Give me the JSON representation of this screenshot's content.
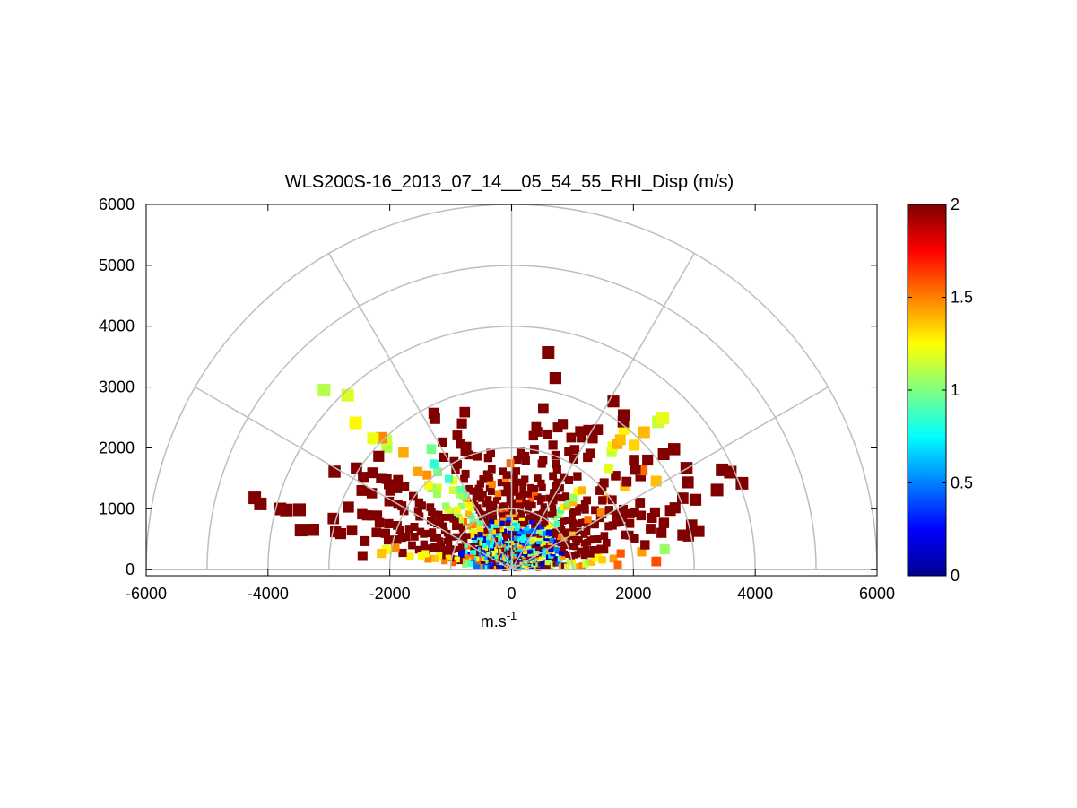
{
  "chart_data": {
    "type": "heatmap",
    "title": "WLS200S-16_2013_07_14__05_54_55_RHI_Disp (m/s)",
    "xlabel": "m.s",
    "xlabel_superscript": "-1",
    "ylabel": "",
    "xlim": [
      -6000,
      6000
    ],
    "ylim": [
      -100,
      6000
    ],
    "x_ticks": [
      -6000,
      -4000,
      -2000,
      0,
      2000,
      4000,
      6000
    ],
    "y_ticks": [
      0,
      1000,
      2000,
      3000,
      4000,
      5000,
      6000
    ],
    "x_tick_labels": [
      "-6000",
      "-4000",
      "-2000",
      "0",
      "2000",
      "4000",
      "6000"
    ],
    "y_tick_labels": [
      "0",
      "1000",
      "2000",
      "3000",
      "4000",
      "5000",
      "6000"
    ],
    "polar_grid": {
      "range_rings": [
        1000,
        2000,
        3000,
        4000,
        5000,
        6000
      ],
      "spoke_angles_deg": [
        0,
        30,
        60,
        90,
        120,
        150,
        180
      ],
      "grid": true
    },
    "colorbar": {
      "min": 0,
      "max": 2,
      "ticks": [
        0,
        0.5,
        1,
        1.5,
        2
      ],
      "tick_labels": [
        "0",
        "0.5",
        "1",
        "1.5",
        "2"
      ],
      "colormap": "jet"
    },
    "beams": [
      {
        "angle_deg": 6,
        "range_max": 3100,
        "mean": 1.2
      },
      {
        "angle_deg": 14,
        "range_max": 3300,
        "mean": 1.8
      },
      {
        "angle_deg": 22,
        "range_max": 4200,
        "mean": 1.9
      },
      {
        "angle_deg": 28,
        "range_max": 3600,
        "mean": 1.9
      },
      {
        "angle_deg": 34,
        "range_max": 4200,
        "mean": 1.5
      },
      {
        "angle_deg": 40,
        "range_max": 3500,
        "mean": 1.9
      },
      {
        "angle_deg": 48,
        "range_max": 3600,
        "mean": 1.0
      },
      {
        "angle_deg": 56,
        "range_max": 3300,
        "mean": 1.9
      },
      {
        "angle_deg": 64,
        "range_max": 2700,
        "mean": 1.8
      },
      {
        "angle_deg": 72,
        "range_max": 2600,
        "mean": 1.7
      },
      {
        "angle_deg": 80,
        "range_max": 3800,
        "mean": 1.9
      },
      {
        "angle_deg": 86,
        "range_max": 2000,
        "mean": 1.6
      },
      {
        "angle_deg": 94,
        "range_max": 1900,
        "mean": 1.5
      },
      {
        "angle_deg": 102,
        "range_max": 2000,
        "mean": 1.6
      },
      {
        "angle_deg": 110,
        "range_max": 2700,
        "mean": 1.8
      },
      {
        "angle_deg": 118,
        "range_max": 3200,
        "mean": 1.9
      },
      {
        "angle_deg": 126,
        "range_max": 2400,
        "mean": 1.0
      },
      {
        "angle_deg": 134,
        "range_max": 4300,
        "mean": 1.2
      },
      {
        "angle_deg": 142,
        "range_max": 3300,
        "mean": 1.9
      },
      {
        "angle_deg": 150,
        "range_max": 3500,
        "mean": 1.9
      },
      {
        "angle_deg": 158,
        "range_max": 3000,
        "mean": 1.9
      },
      {
        "angle_deg": 166,
        "range_max": 4400,
        "mean": 1.9
      },
      {
        "angle_deg": 172,
        "range_max": 2500,
        "mean": 1.4
      }
    ]
  }
}
